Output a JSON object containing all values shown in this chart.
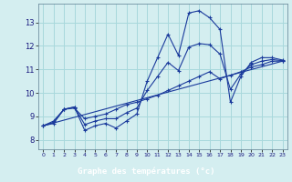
{
  "xlabel": "Graphe des températures (°c)",
  "background_color": "#d4eef0",
  "grid_color": "#a8d8dc",
  "line_color": "#1a3a9c",
  "xlim": [
    -0.5,
    23.5
  ],
  "ylim": [
    7.6,
    13.8
  ],
  "yticks": [
    8,
    9,
    10,
    11,
    12,
    13
  ],
  "x_ticks": [
    0,
    1,
    2,
    3,
    4,
    5,
    6,
    7,
    8,
    9,
    10,
    11,
    12,
    13,
    14,
    15,
    16,
    17,
    18,
    19,
    20,
    21,
    22,
    23
  ],
  "xlabel_bg": "#1a3abd",
  "series": [
    {
      "x": [
        0,
        1,
        2,
        3,
        4,
        5,
        6,
        7,
        8,
        9,
        10,
        11,
        12,
        13,
        14,
        15,
        16,
        17,
        18,
        19,
        20,
        21,
        22,
        23
      ],
      "y": [
        8.6,
        8.8,
        9.3,
        9.4,
        8.4,
        8.6,
        8.7,
        8.5,
        8.8,
        9.1,
        10.5,
        11.5,
        12.5,
        11.6,
        13.4,
        13.5,
        13.2,
        12.7,
        9.6,
        10.7,
        11.3,
        11.5,
        11.5,
        11.4
      ],
      "marker": "+"
    },
    {
      "x": [
        0,
        1,
        2,
        3,
        4,
        5,
        6,
        7,
        8,
        9,
        10,
        11,
        12,
        13,
        14,
        15,
        16,
        17,
        18,
        19,
        20,
        21,
        22,
        23
      ],
      "y": [
        8.6,
        8.7,
        9.3,
        9.35,
        8.9,
        9.0,
        9.1,
        9.3,
        9.5,
        9.6,
        9.75,
        9.9,
        10.1,
        10.3,
        10.5,
        10.7,
        10.9,
        10.6,
        10.75,
        10.9,
        11.1,
        11.2,
        11.35,
        11.35
      ],
      "marker": "+"
    },
    {
      "x": [
        0,
        1,
        2,
        3,
        4,
        5,
        6,
        7,
        8,
        9,
        10,
        11,
        12,
        13,
        14,
        15,
        16,
        17,
        18,
        19,
        20,
        21,
        22,
        23
      ],
      "y": [
        8.6,
        8.75,
        9.3,
        9.4,
        8.65,
        8.8,
        8.9,
        8.9,
        9.15,
        9.35,
        10.1,
        10.7,
        11.3,
        10.95,
        11.95,
        12.1,
        12.05,
        11.65,
        10.15,
        10.8,
        11.2,
        11.35,
        11.42,
        11.37
      ],
      "marker": "+"
    },
    {
      "x": [
        0,
        23
      ],
      "y": [
        8.6,
        11.35
      ],
      "marker": null
    }
  ]
}
